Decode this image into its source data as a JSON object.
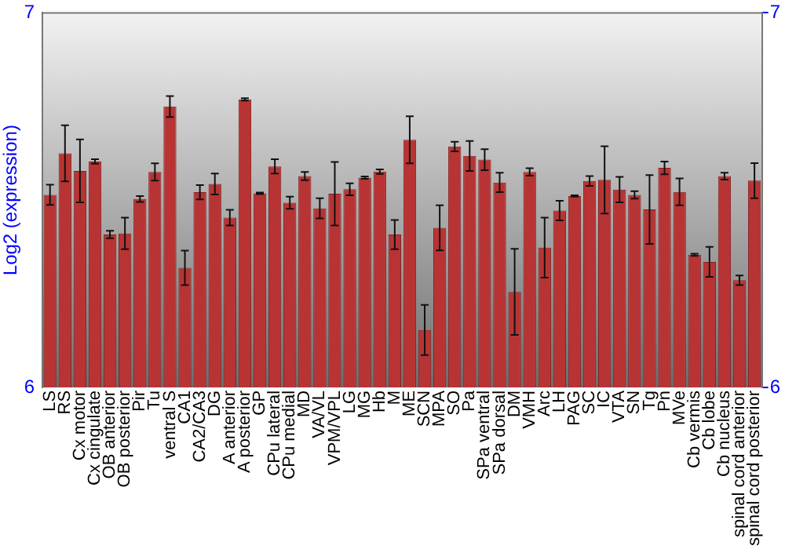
{
  "chart_data": {
    "type": "bar",
    "ylabel": "Log2 (expression)",
    "categories": [
      "LS",
      "RS",
      "Cx motor",
      "Cx cingulate",
      "OB anterior",
      "OB posterior",
      "Pir",
      "Tu",
      "ventral S",
      "CA1",
      "CA2/CA3",
      "DG",
      "A anterior",
      "A posterior",
      "GP",
      "CPu lateral",
      "CPu medial",
      "MD",
      "VA/VL",
      "VPM/VPL",
      "LG",
      "MG",
      "Hb",
      "M",
      "ME",
      "SCN",
      "MPA",
      "SO",
      "Pa",
      "SPa ventral",
      "SPa dorsal",
      "DM",
      "VMH",
      "Arc",
      "LH",
      "PAG",
      "SC",
      "IC",
      "VTA",
      "SN",
      "Tg",
      "Pn",
      "MVe",
      "Cb vermis",
      "Cb lobe",
      "Cb nucleus",
      "spinal cord anterior",
      "spinal cord posterior"
    ],
    "values": [
      6.514,
      6.625,
      6.578,
      6.603,
      6.408,
      6.411,
      6.503,
      6.575,
      6.75,
      6.319,
      6.521,
      6.543,
      6.453,
      6.769,
      6.518,
      6.59,
      6.493,
      6.564,
      6.478,
      6.517,
      6.529,
      6.56,
      6.576,
      6.408,
      6.661,
      6.153,
      6.426,
      6.643,
      6.618,
      6.608,
      6.547,
      6.255,
      6.575,
      6.373,
      6.472,
      6.511,
      6.551,
      6.554,
      6.528,
      6.514,
      6.475,
      6.586,
      6.522,
      6.354,
      6.335,
      6.564,
      6.286,
      6.552
    ],
    "errors": [
      0.027,
      0.075,
      0.084,
      0.006,
      0.01,
      0.042,
      0.008,
      0.023,
      0.028,
      0.046,
      0.019,
      0.028,
      0.021,
      0.003,
      0.002,
      0.019,
      0.016,
      0.011,
      0.027,
      0.085,
      0.016,
      0.003,
      0.006,
      0.039,
      0.063,
      0.067,
      0.06,
      0.013,
      0.04,
      0.028,
      0.026,
      0.115,
      0.01,
      0.08,
      0.026,
      0.002,
      0.013,
      0.09,
      0.034,
      0.01,
      0.092,
      0.017,
      0.036,
      0.003,
      0.04,
      0.009,
      0.013,
      0.047
    ],
    "color": "#b83434",
    "ylim": [
      6,
      7
    ],
    "yticks": [
      6,
      7
    ],
    "y2lim": [
      6,
      7
    ],
    "y2ticks": [
      6,
      7
    ],
    "grid": false,
    "legend": false
  }
}
